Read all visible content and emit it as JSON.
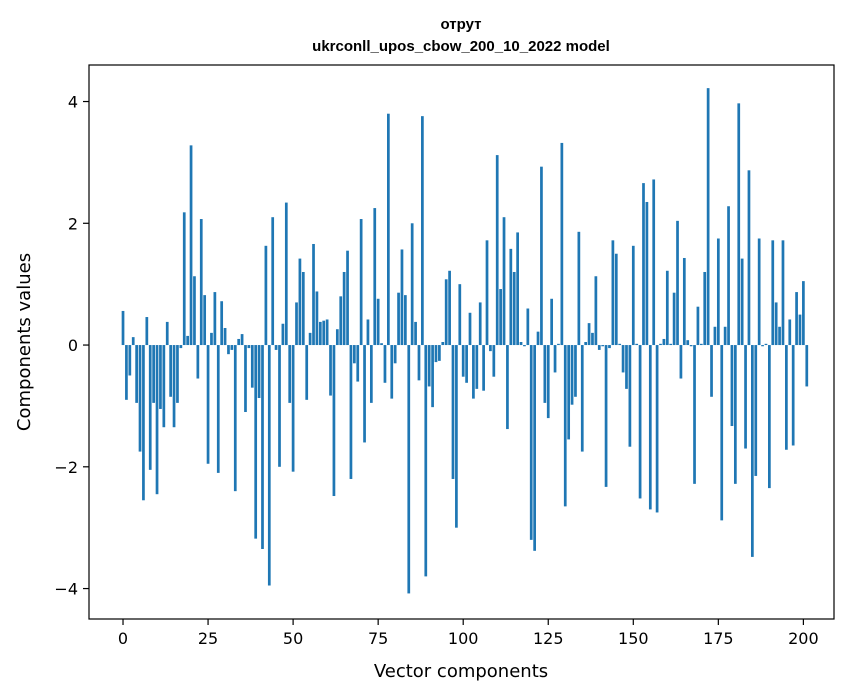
{
  "chart_data": {
    "type": "bar",
    "title_line1": "отрут",
    "title_line2": "ukrconll_upos_cbow_200_10_2022 model",
    "xlabel": "Vector components",
    "ylabel": "Components values",
    "xlim": [
      -10,
      209
    ],
    "ylim": [
      -4.5,
      4.6
    ],
    "xticks": [
      0,
      25,
      50,
      75,
      100,
      125,
      150,
      175,
      200
    ],
    "xtick_labels": [
      "0",
      "25",
      "50",
      "75",
      "100",
      "125",
      "150",
      "175",
      "200"
    ],
    "yticks": [
      -4,
      -2,
      0,
      2,
      4
    ],
    "ytick_labels": [
      "−4",
      "−2",
      "0",
      "2",
      "4"
    ],
    "bar_color": "#1f77b4",
    "grid": false,
    "legend": "none",
    "values": [
      0.56,
      -0.9,
      -0.5,
      0.13,
      -0.95,
      -1.75,
      -2.55,
      0.46,
      -2.05,
      -0.95,
      -2.45,
      -1.05,
      -1.35,
      0.38,
      -0.85,
      -1.35,
      -0.95,
      -0.05,
      2.18,
      0.15,
      3.28,
      1.13,
      -0.55,
      2.07,
      0.82,
      -1.95,
      0.2,
      0.87,
      -2.1,
      0.72,
      0.28,
      -0.15,
      -0.08,
      -2.4,
      0.1,
      0.18,
      -1.1,
      -0.05,
      -0.7,
      -3.18,
      -0.87,
      -3.35,
      1.63,
      -3.95,
      2.1,
      -0.08,
      -2.0,
      0.35,
      2.34,
      -0.95,
      -2.08,
      0.7,
      1.42,
      1.2,
      -0.9,
      0.2,
      1.66,
      0.88,
      0.38,
      0.4,
      0.42,
      -0.83,
      -2.48,
      0.26,
      0.8,
      1.2,
      1.55,
      -2.2,
      -0.3,
      -0.6,
      2.07,
      -1.6,
      0.42,
      -0.95,
      2.25,
      0.76,
      0.03,
      -0.62,
      3.8,
      -0.88,
      -0.3,
      0.86,
      1.57,
      0.82,
      -4.08,
      2.0,
      0.38,
      -0.58,
      3.76,
      -3.8,
      -0.68,
      -1.02,
      -0.28,
      -0.26,
      0.05,
      1.08,
      1.22,
      -2.2,
      -3.0,
      1.0,
      -0.52,
      -0.62,
      0.53,
      -0.88,
      -0.72,
      0.7,
      -0.75,
      1.72,
      -0.1,
      -0.52,
      3.12,
      0.92,
      2.1,
      -1.38,
      1.58,
      1.2,
      1.85,
      0.05,
      -0.02,
      0.6,
      -3.2,
      -3.38,
      0.22,
      2.93,
      -0.95,
      -1.2,
      0.76,
      -0.45,
      0.02,
      3.32,
      -2.65,
      -1.55,
      -0.98,
      -0.85,
      1.86,
      -1.75,
      0.05,
      0.36,
      0.2,
      1.13,
      -0.08,
      -0.02,
      -2.33,
      -0.05,
      1.72,
      1.5,
      0.02,
      -0.45,
      -0.72,
      -1.67,
      1.63,
      0.02,
      -2.52,
      2.66,
      2.35,
      -2.7,
      2.72,
      -2.75,
      0.02,
      0.1,
      1.22,
      0.02,
      0.86,
      2.04,
      -0.55,
      1.43,
      0.08,
      -0.02,
      -2.28,
      0.63,
      0.02,
      1.2,
      4.22,
      -0.85,
      0.3,
      1.75,
      -2.88,
      0.3,
      2.28,
      -1.33,
      -2.28,
      3.97,
      1.42,
      -1.7,
      2.87,
      -3.48,
      -2.15,
      1.75,
      -0.02,
      0.02,
      -2.35,
      1.72,
      0.7,
      0.3,
      1.72,
      -1.72,
      0.42,
      -1.65,
      0.87,
      0.5,
      1.05,
      -0.68
    ]
  }
}
